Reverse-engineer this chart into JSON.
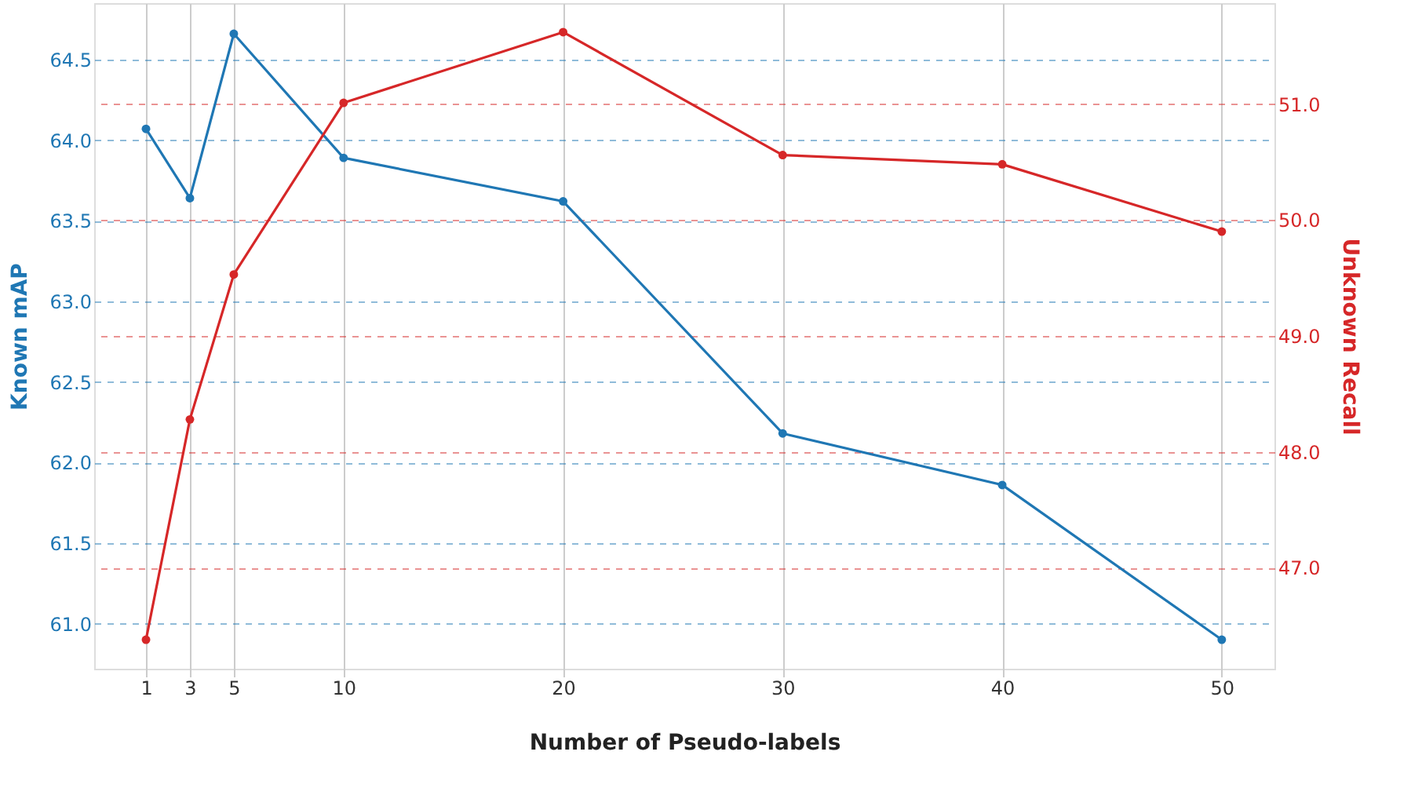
{
  "chart_data": {
    "type": "line",
    "xlabel": "Number of Pseudo-labels",
    "ylabel": "Known mAP",
    "y2label": "Unknown Recall",
    "x": [
      1,
      3,
      5,
      10,
      20,
      30,
      40,
      50
    ],
    "series": [
      {
        "color": "#1f77b4",
        "values": [
          64.07,
          63.64,
          64.66,
          63.89,
          63.62,
          62.18,
          61.86,
          60.9
        ]
      },
      {
        "color": "#d62728",
        "axis": "y2",
        "values": [
          46.38,
          48.28,
          49.53,
          51.01,
          51.62,
          50.56,
          50.48,
          49.9
        ]
      }
    ],
    "xlim": [
      -1.36,
      52.4
    ],
    "xticks": [
      1,
      3,
      5,
      10,
      20,
      30,
      40,
      50
    ],
    "ylim": [
      60.72,
      64.85
    ],
    "yticks": [
      {
        "value": 61,
        "label": "61.0"
      },
      {
        "value": 61.5,
        "label": "61.5"
      },
      {
        "value": 62,
        "label": "62.0"
      },
      {
        "value": 62.5,
        "label": "62.5"
      },
      {
        "value": 63,
        "label": "63.0"
      },
      {
        "value": 63.5,
        "label": "63.5"
      },
      {
        "value": 64,
        "label": "64.0"
      },
      {
        "value": 64.5,
        "label": "64.5"
      }
    ],
    "y2lim": [
      46.13,
      51.87
    ],
    "y2ticks": [
      {
        "value": 47,
        "label": "47.0"
      },
      {
        "value": 48,
        "label": "48.0"
      },
      {
        "value": 49,
        "label": "49.0"
      },
      {
        "value": 50,
        "label": "50.0"
      },
      {
        "value": 51,
        "label": "51.0"
      }
    ],
    "grid": true,
    "marker": "circle",
    "line_style": "solid"
  }
}
